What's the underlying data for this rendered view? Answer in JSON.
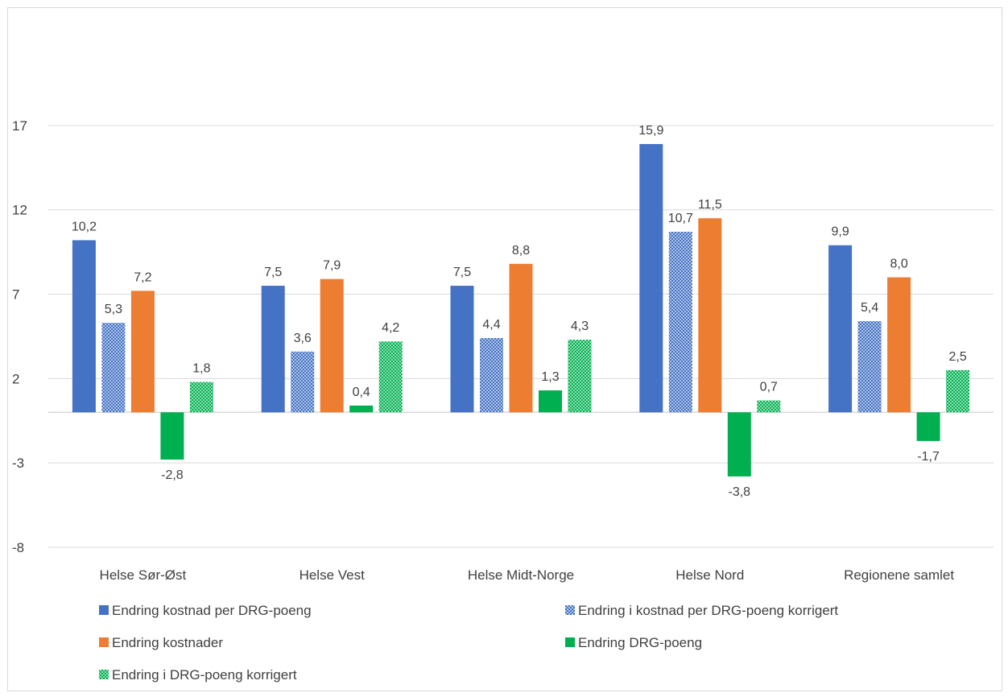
{
  "chart_data": {
    "type": "bar",
    "title": "",
    "xlabel": "",
    "ylabel": "",
    "ylim": [
      -8,
      20
    ],
    "yticks": [
      -8,
      -3,
      2,
      7,
      12,
      17
    ],
    "grid": true,
    "legend_position": "bottom",
    "categories": [
      "Helse Sør-Øst",
      "Helse Vest",
      "Helse Midt-Norge",
      "Helse Nord",
      "Regionene samlet"
    ],
    "series": [
      {
        "name": "Endring kostnad per DRG-poeng",
        "color": "#4472c4",
        "pattern": "solid",
        "values": [
          10.2,
          7.5,
          7.5,
          15.9,
          9.9
        ],
        "labels": [
          "10,2",
          "7,5",
          "7,5",
          "15,9",
          "9,9"
        ]
      },
      {
        "name": "Endring i kostnad per DRG-poeng korrigert",
        "color": "#4472c4",
        "pattern": "dotted",
        "values": [
          5.3,
          3.6,
          4.4,
          10.7,
          5.4
        ],
        "labels": [
          "5,3",
          "3,6",
          "4,4",
          "10,7",
          "5,4"
        ]
      },
      {
        "name": "Endring kostnader",
        "color": "#ed7d31",
        "pattern": "solid",
        "values": [
          7.2,
          7.9,
          8.8,
          11.5,
          8.0
        ],
        "labels": [
          "7,2",
          "7,9",
          "8,8",
          "11,5",
          "8,0"
        ]
      },
      {
        "name": "Endring DRG-poeng",
        "color": "#00b050",
        "pattern": "solid",
        "values": [
          -2.8,
          0.4,
          1.3,
          -3.8,
          -1.7
        ],
        "labels": [
          "-2,8",
          "0,4",
          "1,3",
          "-3,8",
          "-1,7"
        ]
      },
      {
        "name": "Endring i DRG-poeng korrigert",
        "color": "#00b050",
        "pattern": "dotted",
        "values": [
          1.8,
          4.2,
          4.3,
          0.7,
          2.5
        ],
        "labels": [
          "1,8",
          "4,2",
          "4,3",
          "0,7",
          "2,5"
        ]
      }
    ]
  }
}
